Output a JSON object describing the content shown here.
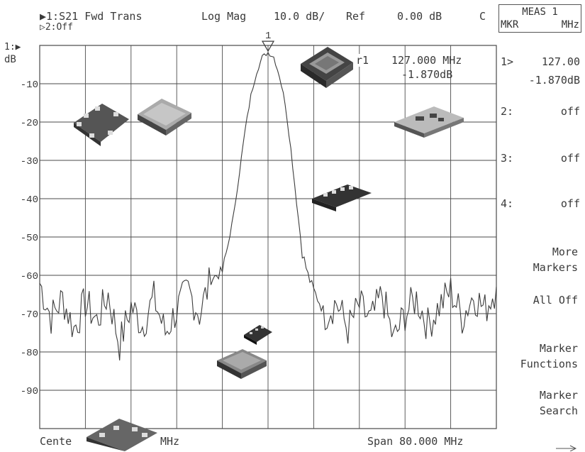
{
  "header": {
    "trace1": "▶1:S21 Fwd Trans",
    "trace2": "▷2:Off",
    "format": "Log Mag",
    "scale": "10.0 dB/",
    "ref_label": "Ref",
    "ref_value": "0.00 dB",
    "cal_flag": "C",
    "ref_marker": "1:▶",
    "unit": "dB"
  },
  "meas_box": {
    "title": "MEAS 1",
    "left": "MKR",
    "right": "MHz"
  },
  "marker_readout": {
    "label": "r1",
    "freq": "127.000 MHz",
    "value": "-1.870dB"
  },
  "marker_list": [
    {
      "label": "1>",
      "value": "127.00"
    },
    {
      "label": "",
      "value": "-1.870dB"
    },
    {
      "label": "2:",
      "value": "off"
    },
    {
      "label": "3:",
      "value": "off"
    },
    {
      "label": "4:",
      "value": "off"
    }
  ],
  "softkeys": {
    "more_markers": [
      "More",
      "Markers"
    ],
    "all_off": "All Off",
    "marker_functions": [
      "Marker",
      "Functions"
    ],
    "marker_search": [
      "Marker",
      "Search"
    ]
  },
  "footer": {
    "center": "Cente",
    "center_unit": "MHz",
    "span": "Span 80.000 MHz"
  },
  "marker_flag": "1",
  "colors": {
    "trace": "#3c3c3c",
    "grid": "#4a4a4a",
    "text": "#3a3a3a"
  },
  "chart_data": {
    "type": "line",
    "title": "",
    "xlabel": "",
    "ylabel": "dB",
    "xlim": [
      87,
      167
    ],
    "ylim": [
      -100,
      0
    ],
    "y_ticks": [
      -10,
      -20,
      -30,
      -40,
      -50,
      -60,
      -70,
      -80,
      -90
    ],
    "y_tick_labels": [
      "-10",
      "-20",
      "-30",
      "-40",
      "-50",
      "-60",
      "-70",
      "-80",
      "-90"
    ],
    "grid": true,
    "series": [
      {
        "x": [
          87,
          89,
          91,
          93,
          95,
          97,
          99,
          101,
          103,
          105,
          107,
          109,
          111,
          113,
          115,
          117,
          119,
          120,
          121,
          122,
          123,
          124,
          125,
          126,
          127,
          128,
          129,
          130,
          131,
          132,
          133,
          134,
          135,
          137,
          139,
          141,
          143,
          145,
          147,
          149,
          151,
          153,
          155,
          157,
          159,
          161,
          163,
          165,
          167
        ],
        "y": [
          -62,
          -71,
          -66,
          -74,
          -67,
          -72,
          -65,
          -78,
          -68,
          -73,
          -66,
          -75,
          -69,
          -64,
          -70,
          -61,
          -59,
          -52,
          -44,
          -33,
          -22,
          -13,
          -7,
          -3,
          -1.87,
          -3,
          -8,
          -15,
          -27,
          -41,
          -54,
          -60,
          -64,
          -70,
          -67,
          -74,
          -68,
          -72,
          -65,
          -77,
          -70,
          -66,
          -73,
          -68,
          -64,
          -71,
          -65,
          -69,
          -63
        ]
      }
    ],
    "marker": {
      "x": 127,
      "y": -1.87,
      "label": "1"
    }
  }
}
